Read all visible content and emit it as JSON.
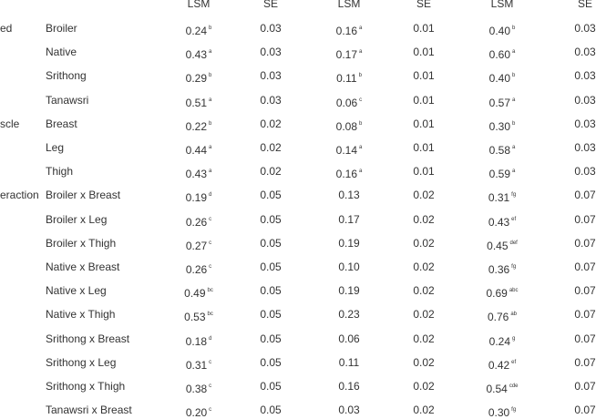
{
  "table": {
    "header": [
      "LSM",
      "SE",
      "LSM",
      "SE",
      "LSM",
      "SE"
    ],
    "rows": [
      {
        "group": "ed",
        "label": "Broiler",
        "cells": [
          {
            "text": "0.24",
            "sup": "b"
          },
          {
            "text": "0.03"
          },
          {
            "text": "0.16",
            "sup": "a"
          },
          {
            "text": "0.01"
          },
          {
            "text": "0.40",
            "sup": "b"
          },
          {
            "text": "0.03"
          }
        ]
      },
      {
        "label": "Native",
        "cells": [
          {
            "text": "0.43",
            "sup": "a"
          },
          {
            "text": "0.03"
          },
          {
            "text": "0.17",
            "sup": "a"
          },
          {
            "text": "0.01"
          },
          {
            "text": "0.60",
            "sup": "a"
          },
          {
            "text": "0.03"
          }
        ]
      },
      {
        "label": "Srithong",
        "cells": [
          {
            "text": "0.29",
            "sup": "b"
          },
          {
            "text": "0.03"
          },
          {
            "text": "0.11",
            "sup": "b"
          },
          {
            "text": "0.01"
          },
          {
            "text": "0.40",
            "sup": "b"
          },
          {
            "text": "0.03"
          }
        ]
      },
      {
        "label": "Tanawsri",
        "cells": [
          {
            "text": "0.51",
            "sup": "a"
          },
          {
            "text": "0.03"
          },
          {
            "text": "0.06",
            "sup": "c"
          },
          {
            "text": "0.01"
          },
          {
            "text": "0.57",
            "sup": "a"
          },
          {
            "text": "0.03"
          }
        ]
      },
      {
        "group": "scle",
        "label": "Breast",
        "cells": [
          {
            "text": "0.22",
            "sup": "b"
          },
          {
            "text": "0.02"
          },
          {
            "text": "0.08",
            "sup": "b"
          },
          {
            "text": "0.01"
          },
          {
            "text": "0.30",
            "sup": "b"
          },
          {
            "text": "0.03"
          }
        ]
      },
      {
        "label": "Leg",
        "cells": [
          {
            "text": "0.44",
            "sup": "a"
          },
          {
            "text": "0.02"
          },
          {
            "text": "0.14",
            "sup": "a"
          },
          {
            "text": "0.01"
          },
          {
            "text": "0.58",
            "sup": "a"
          },
          {
            "text": "0.03"
          }
        ]
      },
      {
        "label": "Thigh",
        "cells": [
          {
            "text": "0.43",
            "sup": "a"
          },
          {
            "text": "0.02"
          },
          {
            "text": "0.16",
            "sup": "a"
          },
          {
            "text": "0.01"
          },
          {
            "text": "0.59",
            "sup": "a"
          },
          {
            "text": "0.03"
          }
        ]
      },
      {
        "group": "eraction",
        "label": "Broiler x Breast",
        "cells": [
          {
            "text": "0.19",
            "sup": "d"
          },
          {
            "text": "0.05"
          },
          {
            "text": "0.13"
          },
          {
            "text": "0.02"
          },
          {
            "text": "0.31",
            "sup": "fg"
          },
          {
            "text": "0.07"
          }
        ]
      },
      {
        "label": "Broiler x Leg",
        "cells": [
          {
            "text": "0.26",
            "sup": "c"
          },
          {
            "text": "0.05"
          },
          {
            "text": "0.17"
          },
          {
            "text": "0.02"
          },
          {
            "text": "0.43",
            "sup": "ef"
          },
          {
            "text": "0.07"
          }
        ]
      },
      {
        "label": "Broiler x Thigh",
        "cells": [
          {
            "text": "0.27",
            "sup": "c"
          },
          {
            "text": "0.05"
          },
          {
            "text": "0.19"
          },
          {
            "text": "0.02"
          },
          {
            "text": "0.45",
            "sup": "def"
          },
          {
            "text": "0.07"
          }
        ]
      },
      {
        "label": "Native x Breast",
        "cells": [
          {
            "text": "0.26",
            "sup": "c"
          },
          {
            "text": "0.05"
          },
          {
            "text": "0.10"
          },
          {
            "text": "0.02"
          },
          {
            "text": "0.36",
            "sup": "fg"
          },
          {
            "text": "0.07"
          }
        ]
      },
      {
        "label": "Native x Leg",
        "cells": [
          {
            "text": "0.49",
            "sup": "bc"
          },
          {
            "text": "0.05"
          },
          {
            "text": "0.19"
          },
          {
            "text": "0.02"
          },
          {
            "text": "0.69",
            "sup": "abc"
          },
          {
            "text": "0.07"
          }
        ]
      },
      {
        "label": "Native x Thigh",
        "cells": [
          {
            "text": "0.53",
            "sup": "bc"
          },
          {
            "text": "0.05"
          },
          {
            "text": "0.23"
          },
          {
            "text": "0.02"
          },
          {
            "text": "0.76",
            "sup": "ab"
          },
          {
            "text": "0.07"
          }
        ]
      },
      {
        "label": "Srithong x Breast",
        "cells": [
          {
            "text": "0.18",
            "sup": "d"
          },
          {
            "text": "0.05"
          },
          {
            "text": "0.06"
          },
          {
            "text": "0.02"
          },
          {
            "text": "0.24",
            "sup": "g"
          },
          {
            "text": "0.07"
          }
        ]
      },
      {
        "label": "Srithong x Leg",
        "cells": [
          {
            "text": "0.31",
            "sup": "c"
          },
          {
            "text": "0.05"
          },
          {
            "text": "0.11"
          },
          {
            "text": "0.02"
          },
          {
            "text": "0.42",
            "sup": "ef"
          },
          {
            "text": "0.07"
          }
        ]
      },
      {
        "label": "Srithong x Thigh",
        "cells": [
          {
            "text": "0.38",
            "sup": "c"
          },
          {
            "text": "0.05"
          },
          {
            "text": "0.16"
          },
          {
            "text": "0.02"
          },
          {
            "text": "0.54",
            "sup": "cde"
          },
          {
            "text": "0.07"
          }
        ]
      },
      {
        "label": "Tanawsri x Breast",
        "cells": [
          {
            "text": "0.20",
            "sup": "c"
          },
          {
            "text": "0.05"
          },
          {
            "text": "0.03"
          },
          {
            "text": "0.02"
          },
          {
            "text": "0.30",
            "sup": "fg"
          },
          {
            "text": "0.07"
          }
        ]
      }
    ]
  }
}
